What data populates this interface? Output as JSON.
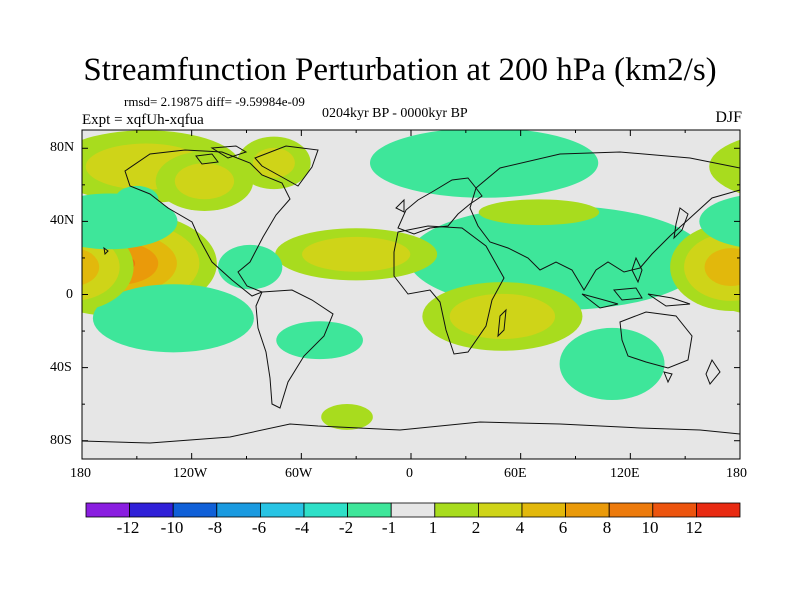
{
  "title": "Streamfunction Perturbation at 200 hPa (km2/s)",
  "stats": "rmsd= 2.19875 diff= -9.59984e-09",
  "experiment": "Expt = xqfUh-xqfua",
  "period": "0204kyr BP - 0000kyr BP",
  "season": "DJF",
  "lat_ticks": [
    "80N",
    "40N",
    "0",
    "40S",
    "80S"
  ],
  "lon_ticks": [
    "180",
    "120W",
    "60W",
    "0",
    "60E",
    "120E",
    "180"
  ],
  "colorbar": {
    "colors": [
      "#8a1ee0",
      "#3020d8",
      "#1060d8",
      "#1a9ae0",
      "#28c4e4",
      "#2ee0c8",
      "#3ee69a",
      "#e6e6e6",
      "#a8dc1e",
      "#cfd418",
      "#e2b80c",
      "#ea9a0a",
      "#ec7a0c",
      "#ec540e",
      "#e82a12"
    ],
    "labels": [
      "-12",
      "-10",
      "-8",
      "-6",
      "-4",
      "-2",
      "-1",
      "1",
      "2",
      "4",
      "6",
      "8",
      "10",
      "12"
    ]
  },
  "chart_data": {
    "type": "heatmap",
    "variable": "streamfunction perturbation",
    "units": "km2/s",
    "x_range": [
      -180,
      180
    ],
    "y_range": [
      -90,
      90
    ],
    "levels": [
      -12,
      -10,
      -8,
      -6,
      -4,
      -2,
      -1,
      1,
      2,
      4,
      6,
      8,
      10,
      12
    ],
    "features": [
      {
        "name": "central-pacific-high-nh",
        "lon": -160,
        "lat": 17,
        "value": 8.5,
        "slon": 26,
        "slat": 14
      },
      {
        "name": "west-pacific-high-nh",
        "lon": 175,
        "lat": 15,
        "value": 5.5,
        "slon": 18,
        "slat": 13
      },
      {
        "name": "ne-pacific-high",
        "lon": -145,
        "lat": 70,
        "value": 3.2,
        "slon": 34,
        "slat": 13
      },
      {
        "name": "n-america-high",
        "lon": -113,
        "lat": 62,
        "value": 3.0,
        "slon": 18,
        "slat": 11
      },
      {
        "name": "hudson-high",
        "lon": -75,
        "lat": 72,
        "value": 2.8,
        "slon": 14,
        "slat": 10
      },
      {
        "name": "atlantic-high",
        "lon": -30,
        "lat": 22,
        "value": 3.5,
        "slon": 28,
        "slat": 9
      },
      {
        "name": "central-asia-high",
        "lon": 70,
        "lat": 45,
        "value": 2.0,
        "slon": 28,
        "slat": 6
      },
      {
        "name": "south-africa-high",
        "lon": 50,
        "lat": -12,
        "value": 3.4,
        "slon": 28,
        "slat": 12
      },
      {
        "name": "south-atlantic-high",
        "lon": -35,
        "lat": -67,
        "value": 2.0,
        "slon": 12,
        "slat": 6
      },
      {
        "name": "north-pacific-low",
        "lon": -165,
        "lat": 40,
        "value": -4.2,
        "slon": 22,
        "slat": 9
      },
      {
        "name": "east-pacific-low-sh",
        "lon": -130,
        "lat": -13,
        "value": -4.2,
        "slon": 26,
        "slat": 11
      },
      {
        "name": "asian-low",
        "lon": 80,
        "lat": 20,
        "value": -8.0,
        "slon": 40,
        "slat": 14
      },
      {
        "name": "eurasia-arctic-low",
        "lon": 40,
        "lat": 72,
        "value": -4.5,
        "slon": 36,
        "slat": 11
      },
      {
        "name": "americas-low",
        "lon": -88,
        "lat": 15,
        "value": -2.5,
        "slon": 13,
        "slat": 9
      },
      {
        "name": "australia-low",
        "lon": 110,
        "lat": -38,
        "value": -5.0,
        "slon": 16,
        "slat": 11
      },
      {
        "name": "south-atlantic-low",
        "lon": -50,
        "lat": -25,
        "value": -3.0,
        "slon": 16,
        "slat": 7
      },
      {
        "name": "alaska-low",
        "lon": -150,
        "lat": 52,
        "value": -3.0,
        "slon": 8,
        "slat": 5
      }
    ]
  }
}
